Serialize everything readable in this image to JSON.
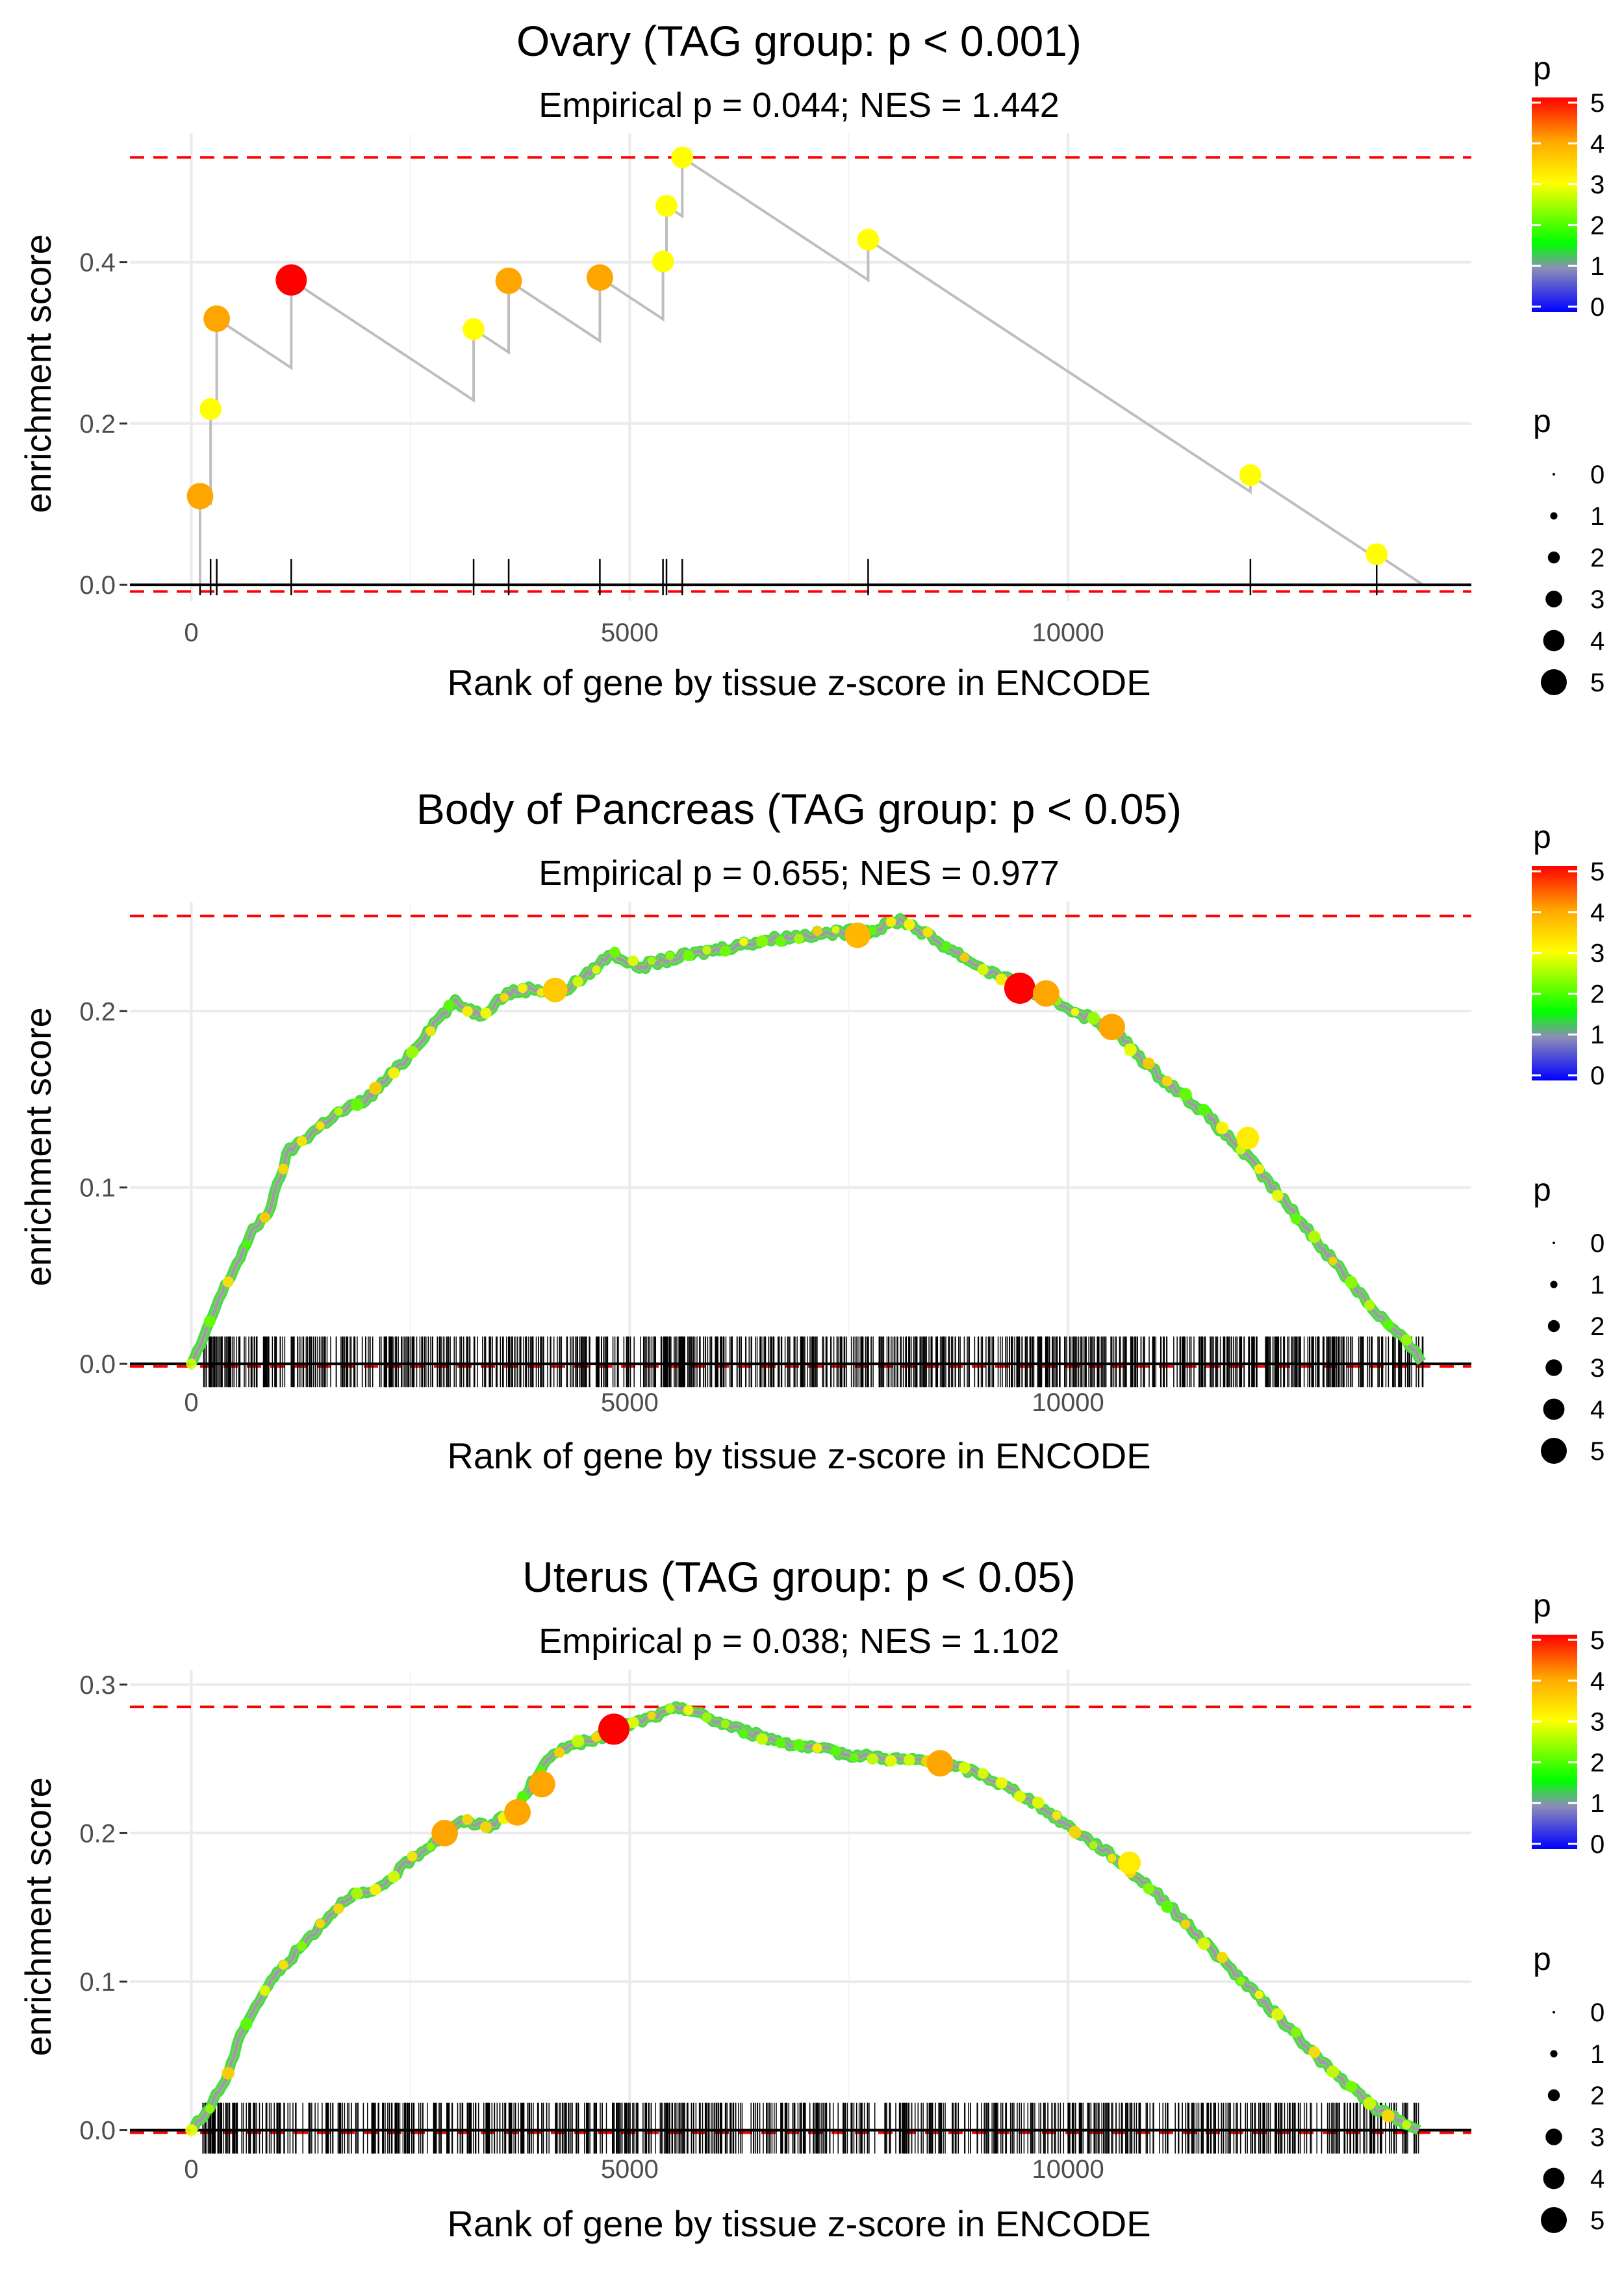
{
  "chart_data": [
    {
      "type": "line",
      "title": "Ovary (TAG group: p < 0.001)",
      "subtitle": "Empirical p = 0.044; NES = 1.442",
      "xlabel": "Rank of gene by tissue z-score in ENCODE",
      "ylabel": "enrichment score",
      "xlim": [
        -700,
        14600
      ],
      "ylim": [
        -0.02,
        0.56
      ],
      "xticks": [
        0,
        5000,
        10000
      ],
      "yticks": [
        0.0,
        0.2,
        0.4
      ],
      "ytick_labels": [
        "0.0",
        "0.2",
        "0.4"
      ],
      "max_es": 0.53,
      "min_es": -0.005,
      "hits": [
        {
          "x": 100,
          "es": 0.11,
          "p": 4.0
        },
        {
          "x": 220,
          "es": 0.218,
          "p": 3.0
        },
        {
          "x": 290,
          "es": 0.33,
          "p": 4.0
        },
        {
          "x": 1140,
          "es": 0.378,
          "p": 5.0
        },
        {
          "x": 3220,
          "es": 0.317,
          "p": 3.0
        },
        {
          "x": 3620,
          "es": 0.377,
          "p": 4.0
        },
        {
          "x": 4660,
          "es": 0.381,
          "p": 4.0
        },
        {
          "x": 5380,
          "es": 0.401,
          "p": 3.0
        },
        {
          "x": 5420,
          "es": 0.47,
          "p": 3.0
        },
        {
          "x": 5600,
          "es": 0.53,
          "p": 3.0
        },
        {
          "x": 7720,
          "es": 0.428,
          "p": 3.0
        },
        {
          "x": 12080,
          "es": 0.136,
          "p": 3.0
        },
        {
          "x": 13520,
          "es": 0.038,
          "p": 3.0
        }
      ],
      "end_x": 14050
    },
    {
      "type": "line",
      "title": "Body of Pancreas (TAG group: p < 0.05)",
      "subtitle": "Empirical p = 0.655; NES = 0.977",
      "xlabel": "Rank of gene by tissue z-score in ENCODE",
      "ylabel": "enrichment score",
      "xlim": [
        -700,
        14600
      ],
      "ylim": [
        -0.004,
        0.262
      ],
      "xticks": [
        0,
        5000,
        10000
      ],
      "yticks": [
        0.0,
        0.1,
        0.2
      ],
      "ytick_labels": [
        "0.0",
        "0.1",
        "0.2"
      ],
      "max_es": 0.254,
      "min_es": 0.0,
      "curve": [
        [
          0,
          0.0
        ],
        [
          150,
          0.015
        ],
        [
          300,
          0.035
        ],
        [
          500,
          0.055
        ],
        [
          700,
          0.075
        ],
        [
          900,
          0.088
        ],
        [
          1100,
          0.12
        ],
        [
          1300,
          0.128
        ],
        [
          1600,
          0.14
        ],
        [
          2000,
          0.15
        ],
        [
          2400,
          0.17
        ],
        [
          2800,
          0.195
        ],
        [
          3000,
          0.205
        ],
        [
          3300,
          0.198
        ],
        [
          3600,
          0.21
        ],
        [
          3900,
          0.213
        ],
        [
          4200,
          0.21
        ],
        [
          4500,
          0.22
        ],
        [
          4800,
          0.233
        ],
        [
          5100,
          0.225
        ],
        [
          5500,
          0.23
        ],
        [
          6000,
          0.235
        ],
        [
          6500,
          0.24
        ],
        [
          7000,
          0.243
        ],
        [
          7500,
          0.245
        ],
        [
          7800,
          0.246
        ],
        [
          8100,
          0.252
        ],
        [
          8500,
          0.24
        ],
        [
          9000,
          0.225
        ],
        [
          9500,
          0.213
        ],
        [
          10000,
          0.202
        ],
        [
          10500,
          0.19
        ],
        [
          11000,
          0.165
        ],
        [
          11500,
          0.145
        ],
        [
          12000,
          0.12
        ],
        [
          12500,
          0.09
        ],
        [
          13000,
          0.06
        ],
        [
          13500,
          0.03
        ],
        [
          13900,
          0.01
        ],
        [
          14050,
          0.0
        ]
      ],
      "highlights": [
        {
          "x": 9450,
          "es": 0.213,
          "p": 5.0
        },
        {
          "x": 9750,
          "es": 0.21,
          "p": 4.0
        },
        {
          "x": 10500,
          "es": 0.191,
          "p": 4.0
        },
        {
          "x": 7600,
          "es": 0.243,
          "p": 3.8
        },
        {
          "x": 4150,
          "es": 0.212,
          "p": 3.6
        },
        {
          "x": 12050,
          "es": 0.128,
          "p": 3.2
        }
      ],
      "rug_count": 900
    },
    {
      "type": "line",
      "title": "Uterus (TAG group: p < 0.05)",
      "subtitle": "Empirical p = 0.038; NES = 1.102",
      "xlabel": "Rank of gene by tissue z-score in ENCODE",
      "ylabel": "enrichment score",
      "xlim": [
        -700,
        14600
      ],
      "ylim": [
        -0.005,
        0.31
      ],
      "xticks": [
        0,
        5000,
        10000
      ],
      "yticks": [
        0.0,
        0.1,
        0.2,
        0.3
      ],
      "ytick_labels": [
        "0.0",
        "0.1",
        "0.2",
        "0.3"
      ],
      "max_es": 0.285,
      "min_es": 0.0,
      "curve": [
        [
          0,
          0.0
        ],
        [
          150,
          0.01
        ],
        [
          400,
          0.035
        ],
        [
          600,
          0.07
        ],
        [
          900,
          0.1
        ],
        [
          1200,
          0.12
        ],
        [
          1500,
          0.14
        ],
        [
          1800,
          0.158
        ],
        [
          2100,
          0.16
        ],
        [
          2500,
          0.182
        ],
        [
          2900,
          0.2
        ],
        [
          3100,
          0.208
        ],
        [
          3400,
          0.205
        ],
        [
          3700,
          0.215
        ],
        [
          4000,
          0.245
        ],
        [
          4300,
          0.26
        ],
        [
          4600,
          0.262
        ],
        [
          4820,
          0.27
        ],
        [
          5100,
          0.275
        ],
        [
          5600,
          0.285
        ],
        [
          6000,
          0.275
        ],
        [
          6500,
          0.265
        ],
        [
          7000,
          0.258
        ],
        [
          7500,
          0.253
        ],
        [
          8000,
          0.25
        ],
        [
          8500,
          0.248
        ],
        [
          9000,
          0.24
        ],
        [
          9500,
          0.225
        ],
        [
          10000,
          0.205
        ],
        [
          10500,
          0.185
        ],
        [
          11000,
          0.16
        ],
        [
          11500,
          0.13
        ],
        [
          12000,
          0.1
        ],
        [
          12500,
          0.07
        ],
        [
          13000,
          0.04
        ],
        [
          13500,
          0.015
        ],
        [
          14000,
          0.0
        ]
      ],
      "highlights": [
        {
          "x": 4820,
          "es": 0.27,
          "p": 5.0
        },
        {
          "x": 2890,
          "es": 0.2,
          "p": 4.0
        },
        {
          "x": 3720,
          "es": 0.214,
          "p": 4.0
        },
        {
          "x": 4000,
          "es": 0.233,
          "p": 4.0
        },
        {
          "x": 8540,
          "es": 0.247,
          "p": 4.0
        },
        {
          "x": 10700,
          "es": 0.18,
          "p": 3.2
        }
      ],
      "rug_count": 800
    }
  ],
  "legend": {
    "title": "p",
    "color_ticks": [
      "0",
      "1",
      "2",
      "3",
      "4",
      "5"
    ],
    "size_labels": [
      "0",
      "1",
      "2",
      "3",
      "4",
      "5"
    ]
  }
}
